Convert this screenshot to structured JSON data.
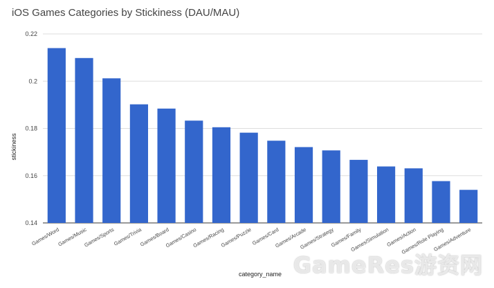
{
  "chart_data": {
    "type": "bar",
    "title": "iOS Games Categories by Stickiness (DAU/MAU)",
    "xlabel": "category_name",
    "ylabel": "stickiness",
    "ylim": [
      0.14,
      0.22
    ],
    "yticks": [
      "0.14",
      "0.16",
      "0.18",
      "0.2",
      "0.22"
    ],
    "grid": true,
    "legend": "none",
    "bar_color": "#3366cc",
    "categories": [
      "Games/Word",
      "Games/Music",
      "Games/Sports",
      "Games/Trivia",
      "Games/Board",
      "Games/Casino",
      "Games/Racing",
      "Games/Puzzle",
      "Games/Card",
      "Games/Arcade",
      "Games/Strategy",
      "Games/Family",
      "Games/Simulation",
      "Games/Action",
      "Games/Role Playing",
      "Games/Adventure"
    ],
    "values": [
      0.214,
      0.2098,
      0.2012,
      0.1902,
      0.1884,
      0.1833,
      0.1805,
      0.1782,
      0.1748,
      0.1721,
      0.1707,
      0.1667,
      0.1639,
      0.1631,
      0.1577,
      0.154
    ]
  },
  "watermark": "GameRes游资网"
}
